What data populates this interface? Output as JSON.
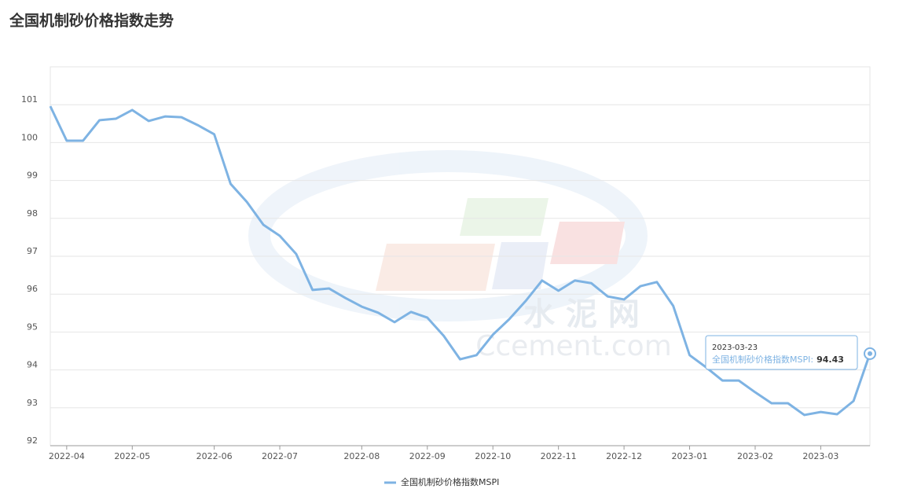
{
  "chart_data": {
    "type": "line",
    "title": "全国机制砂价格指数走势",
    "categories": [
      null,
      "2022-04",
      null,
      null,
      null,
      "2022-05",
      null,
      null,
      null,
      null,
      "2022-06",
      null,
      null,
      null,
      "2022-07",
      null,
      null,
      null,
      null,
      "2022-08",
      null,
      null,
      null,
      "2022-09",
      null,
      null,
      null,
      "2022-10",
      null,
      null,
      null,
      "2022-11",
      null,
      null,
      null,
      "2022-12",
      null,
      null,
      null,
      "2023-01",
      null,
      null,
      null,
      "2023-02",
      null,
      null,
      null,
      "2023-03",
      null,
      null,
      null
    ],
    "series": [
      {
        "name": "全国机制砂价格指数MSPI",
        "color": "#7eb3e3",
        "values": [
          100.96,
          100.05,
          100.05,
          100.59,
          100.63,
          100.86,
          100.57,
          100.69,
          100.67,
          100.46,
          100.22,
          98.91,
          98.43,
          97.83,
          97.54,
          97.06,
          96.11,
          96.15,
          95.9,
          95.67,
          95.51,
          95.26,
          95.53,
          95.38,
          94.9,
          94.28,
          94.39,
          94.93,
          95.34,
          95.82,
          96.36,
          96.09,
          96.36,
          96.29,
          95.94,
          95.86,
          96.21,
          96.32,
          95.69,
          94.39,
          94.07,
          93.72,
          93.72,
          93.41,
          93.12,
          93.12,
          92.81,
          92.89,
          92.83,
          93.18,
          94.43
        ]
      }
    ],
    "ylim": [
      92,
      102
    ],
    "yticks": [
      92,
      93,
      94,
      95,
      96,
      97,
      98,
      99,
      100,
      101
    ],
    "grid": true,
    "legend": "bottom",
    "tooltip": {
      "x": "2023-03-23"
    },
    "watermark": {
      "cn": "水 泥 网",
      "en": "Ccement.com"
    }
  }
}
